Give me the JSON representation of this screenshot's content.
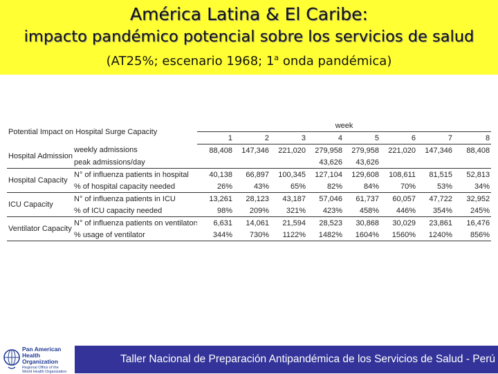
{
  "header": {
    "title_line1": "América Latina & El Caribe:",
    "title_line2": "impacto pandémico potencial sobre los servicios de salud",
    "title_line3_before": "(AT25%; escenario 1968; 1",
    "title_line3_sup": "a",
    "title_line3_after": " onda pandémica)",
    "background_color": "#ffff33"
  },
  "table": {
    "title": "Potential Impact on Hospital Surge Capacity",
    "week_label": "week",
    "weeks": [
      "1",
      "2",
      "3",
      "4",
      "5",
      "6",
      "7",
      "8"
    ],
    "groups": [
      {
        "category": "Hospital Admission",
        "rows": [
          {
            "label": "weekly admissions",
            "values": [
              "88,408",
              "147,346",
              "221,020",
              "279,958",
              "279,958",
              "221,020",
              "147,346",
              "88,408"
            ]
          },
          {
            "label": "peak admissions/day",
            "values": [
              "",
              "",
              "",
              "43,626",
              "43,626",
              "",
              "",
              ""
            ]
          }
        ]
      },
      {
        "category": "Hospital Capacity",
        "rows": [
          {
            "label": "N° of influenza patients in hospital",
            "values": [
              "40,138",
              "66,897",
              "100,345",
              "127,104",
              "129,608",
              "108,611",
              "81,515",
              "52,813"
            ]
          },
          {
            "label": "% of hospital capacity needed",
            "values": [
              "26%",
              "43%",
              "65%",
              "82%",
              "84%",
              "70%",
              "53%",
              "34%"
            ]
          }
        ]
      },
      {
        "category": "ICU Capacity",
        "rows": [
          {
            "label": "N° of influenza patients in ICU",
            "values": [
              "13,261",
              "28,123",
              "43,187",
              "57,046",
              "61,737",
              "60,057",
              "47,722",
              "32,952"
            ]
          },
          {
            "label": "% of ICU capacity needed",
            "values": [
              "98%",
              "209%",
              "321%",
              "423%",
              "458%",
              "446%",
              "354%",
              "245%"
            ]
          }
        ]
      },
      {
        "category": "Ventilator Capacity",
        "rows": [
          {
            "label": "N° of influenza patients on ventilators",
            "values": [
              "6,631",
              "14,061",
              "21,594",
              "28,523",
              "30,868",
              "30,029",
              "23,861",
              "16,476"
            ]
          },
          {
            "label": "% usage of ventilator",
            "values": [
              "344%",
              "730%",
              "1122%",
              "1482%",
              "1604%",
              "1560%",
              "1240%",
              "856%"
            ]
          }
        ]
      }
    ]
  },
  "footer": {
    "logo_line1": "Pan American",
    "logo_line2": "Health",
    "logo_line3": "Organization",
    "logo_sub1": "Regional Office of the",
    "logo_sub2": "World Health Organization",
    "banner_text": "Taller Nacional de Preparación Antipandémica de los Servicios de Salud - Perú",
    "banner_color": "#333399"
  }
}
